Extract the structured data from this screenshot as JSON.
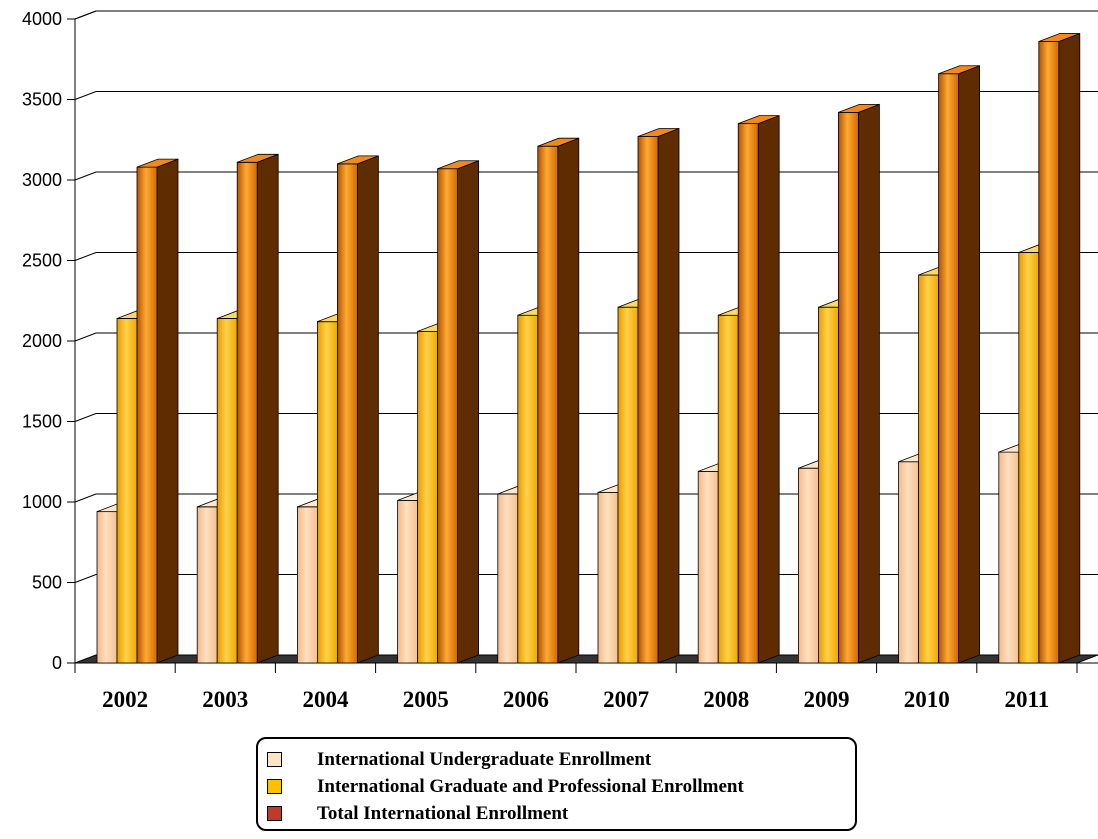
{
  "chart_data": {
    "type": "bar",
    "title": "",
    "xlabel": "",
    "ylabel": "",
    "ylim": [
      0,
      4000
    ],
    "yticks": [
      0,
      500,
      1000,
      1500,
      2000,
      2500,
      3000,
      3500,
      4000
    ],
    "grid": true,
    "legend_position": "bottom",
    "categories": [
      "2002",
      "2003",
      "2004",
      "2005",
      "2006",
      "2007",
      "2008",
      "2009",
      "2010",
      "2011"
    ],
    "series": [
      {
        "name": "International Undergraduate Enrollment",
        "color": "#FFCC99",
        "values": [
          940,
          970,
          970,
          1010,
          1050,
          1060,
          1190,
          1210,
          1250,
          1310
        ]
      },
      {
        "name": "International Graduate and Professional Enrollment",
        "color": "#FFC000",
        "values": [
          2140,
          2140,
          2120,
          2060,
          2160,
          2210,
          2160,
          2210,
          2410,
          2550
        ]
      },
      {
        "name": "Total International Enrollment",
        "color": "#C0392B",
        "values": [
          3080,
          3110,
          3100,
          3070,
          3210,
          3270,
          3350,
          3420,
          3660,
          3860
        ]
      }
    ]
  }
}
